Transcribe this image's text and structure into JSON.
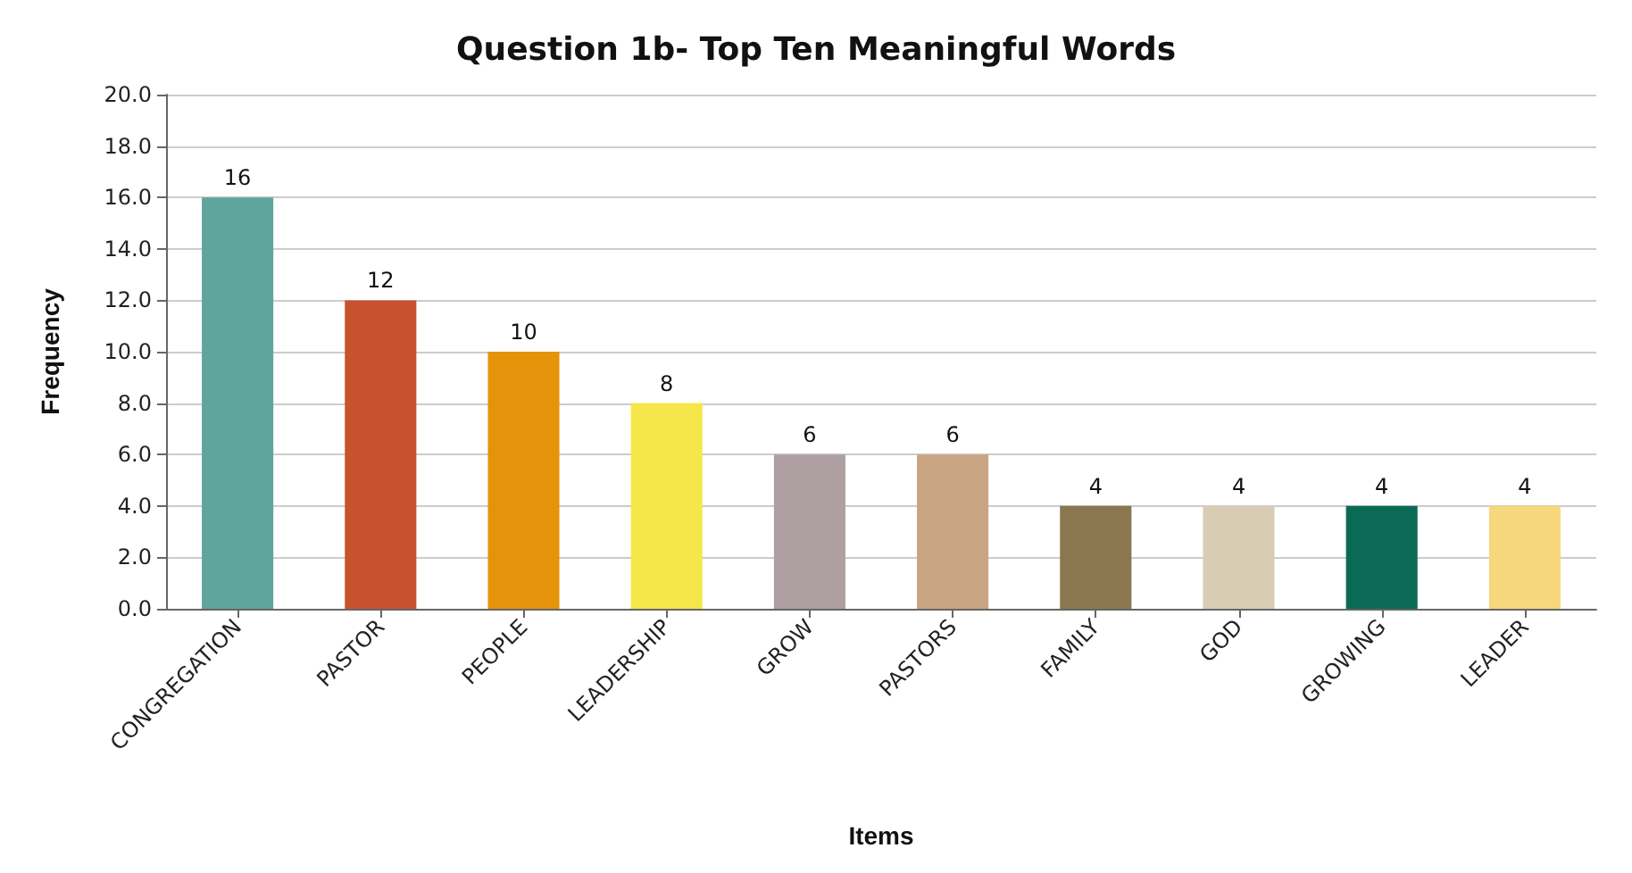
{
  "chart_data": {
    "type": "bar",
    "title": "Question 1b- Top Ten Meaningful Words",
    "xlabel": "Items",
    "ylabel": "Frequency",
    "categories": [
      "CONGREGATION",
      "PASTOR",
      "PEOPLE",
      "LEADERSHIP",
      "GROW",
      "PASTORS",
      "FAMILY",
      "GOD",
      "GROWING",
      "LEADER"
    ],
    "values": [
      16,
      12,
      10,
      8,
      6,
      6,
      4,
      4,
      4,
      4
    ],
    "colors": [
      "#5fa59e",
      "#c6522e",
      "#e6930c",
      "#f5e74a",
      "#ae9fa3",
      "#c9a482",
      "#8a7750",
      "#d8cdb4",
      "#0b6a56",
      "#f7d77c"
    ],
    "ylim": [
      0,
      20
    ],
    "yticks": [
      {
        "value": 0,
        "label": "0.0"
      },
      {
        "value": 2,
        "label": "2.0"
      },
      {
        "value": 4,
        "label": "4.0"
      },
      {
        "value": 6,
        "label": "6.0"
      },
      {
        "value": 8,
        "label": "8.0"
      },
      {
        "value": 10,
        "label": "10.0"
      },
      {
        "value": 12,
        "label": "12.0"
      },
      {
        "value": 14,
        "label": "14.0"
      },
      {
        "value": 16,
        "label": "16.0"
      },
      {
        "value": 18,
        "label": "18.0"
      },
      {
        "value": 20,
        "label": "20.0"
      }
    ],
    "grid": "y",
    "data_labels": true
  }
}
